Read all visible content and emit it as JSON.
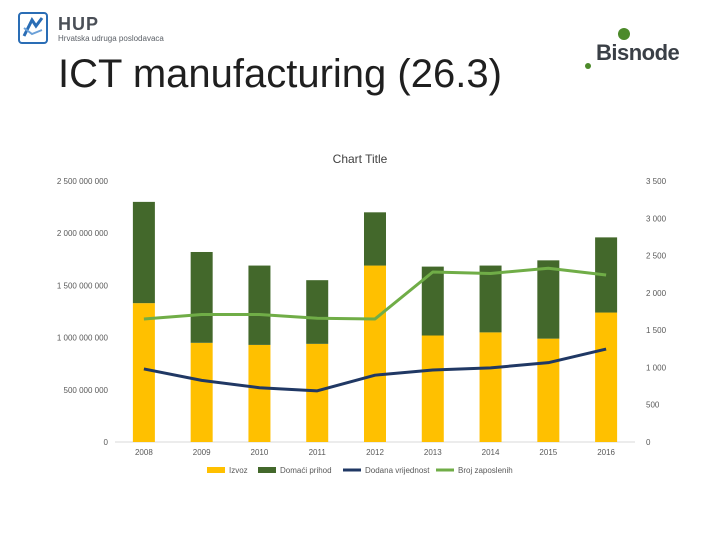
{
  "header": {
    "hup_name": "HUP",
    "hup_subtitle": "Hrvatska udruga poslodavaca",
    "bisnode_name": "Bisnode",
    "page_title": "ICT manufacturing (26.3)"
  },
  "colors": {
    "izvoz": "#FFC000",
    "domaci": "#43682B",
    "dodana": "#203864",
    "zaposleni": "#70AD47",
    "hup_blue": "#2a6db5",
    "bisnode_green": "#4c8a2a"
  },
  "chart_data": {
    "type": "bar",
    "title": "Chart Title",
    "categories": [
      "2008",
      "2009",
      "2010",
      "2011",
      "2012",
      "2013",
      "2014",
      "2015",
      "2016"
    ],
    "series": [
      {
        "name": "Izvoz",
        "kind": "stacked-bar",
        "axis": "left",
        "values": [
          1330000000,
          950000000,
          930000000,
          940000000,
          1690000000,
          1020000000,
          1050000000,
          990000000,
          1240000000
        ]
      },
      {
        "name": "Domaći prihod",
        "kind": "stacked-bar",
        "axis": "left",
        "values": [
          970000000,
          870000000,
          760000000,
          610000000,
          510000000,
          660000000,
          640000000,
          750000000,
          720000000
        ]
      },
      {
        "name": "Dodana vrijednost",
        "kind": "line",
        "axis": "left",
        "values": [
          700000000,
          590000000,
          520000000,
          490000000,
          640000000,
          690000000,
          710000000,
          760000000,
          890000000
        ]
      },
      {
        "name": "Broj zaposlenih",
        "kind": "line",
        "axis": "right",
        "values": [
          1650,
          1710,
          1710,
          1660,
          1650,
          2280,
          2260,
          2330,
          2240
        ]
      }
    ],
    "left_axis": {
      "ylim": [
        0,
        2500000000
      ],
      "ticks": [
        0,
        500000000,
        1000000000,
        1500000000,
        2000000000,
        2500000000
      ],
      "tick_labels": [
        "0",
        "500 000 000",
        "1 000 000 000",
        "1 500 000 000",
        "2 000 000 000",
        "2 500 000 000"
      ]
    },
    "right_axis": {
      "ylim": [
        0,
        3500
      ],
      "ticks": [
        0,
        500,
        1000,
        1500,
        2000,
        2500,
        3000,
        3500
      ],
      "tick_labels": [
        "0",
        "500",
        "1 000",
        "1 500",
        "2 000",
        "2 500",
        "3 000",
        "3 500"
      ]
    },
    "legend_position": "bottom"
  }
}
